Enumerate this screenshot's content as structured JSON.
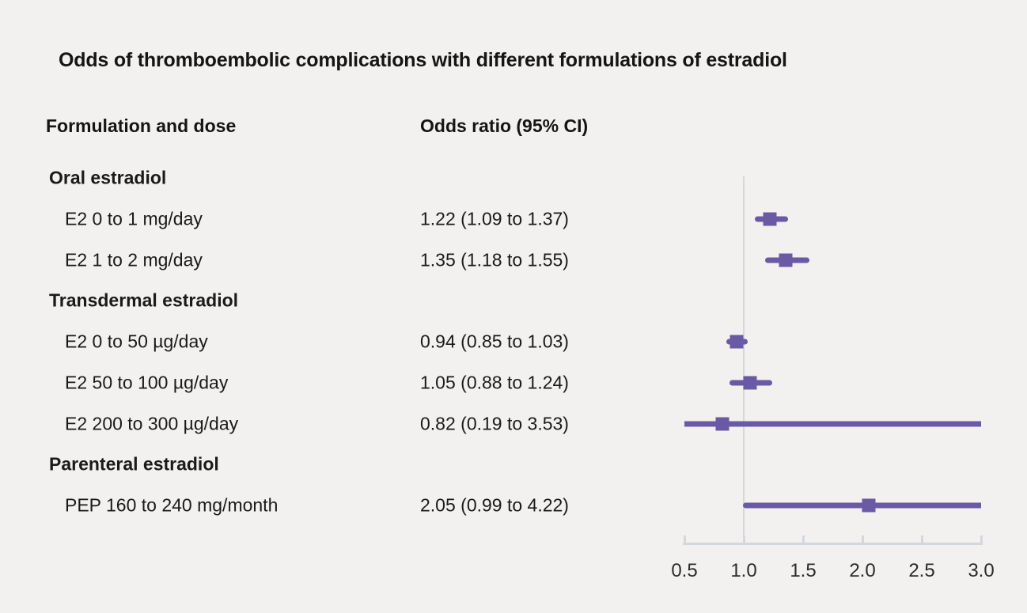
{
  "title": "Odds of thromboembolic complications with different formulations of estradiol",
  "columns": {
    "formulation": "Formulation and dose",
    "odds_ratio": "Odds ratio (95% CI)"
  },
  "colors": {
    "background": "#f2f1ef",
    "text": "#1a1a1a",
    "marker_purple": "#6a59a4",
    "axis_gray": "#d3d7de"
  },
  "chart_data": {
    "type": "forest",
    "title": "Odds of thromboembolic complications with different formulations of estradiol",
    "xlabel": "",
    "ylabel": "",
    "xlim": [
      0.5,
      3.0
    ],
    "x_ticks": [
      "0.5",
      "1.0",
      "1.5",
      "2.0",
      "2.5",
      "3.0"
    ],
    "x_tick_values": [
      0.5,
      1.0,
      1.5,
      2.0,
      2.5,
      3.0
    ],
    "reference_line": 1.0,
    "grid": false,
    "legend": false,
    "rows": [
      {
        "kind": "group",
        "label": "Oral estradiol"
      },
      {
        "kind": "item",
        "label": "E2 0 to 1 mg/day",
        "value_text": "1.22 (1.09 to 1.37)",
        "est": 1.22,
        "lo": 1.09,
        "hi": 1.37
      },
      {
        "kind": "item",
        "label": "E2 1 to 2 mg/day",
        "value_text": "1.35 (1.18 to 1.55)",
        "est": 1.35,
        "lo": 1.18,
        "hi": 1.55
      },
      {
        "kind": "group",
        "label": "Transdermal estradiol"
      },
      {
        "kind": "item",
        "label": "E2 0 to 50 µg/day",
        "value_text": "0.94 (0.85 to 1.03)",
        "est": 0.94,
        "lo": 0.85,
        "hi": 1.03
      },
      {
        "kind": "item",
        "label": "E2 50 to 100 µg/day",
        "value_text": "1.05 (0.88 to 1.24)",
        "est": 1.05,
        "lo": 0.88,
        "hi": 1.24
      },
      {
        "kind": "item",
        "label": "E2 200 to 300 µg/day",
        "value_text": "0.82 (0.19 to 3.53)",
        "est": 0.82,
        "lo": 0.19,
        "hi": 3.53
      },
      {
        "kind": "group",
        "label": "Parenteral estradiol"
      },
      {
        "kind": "item",
        "label": "PEP 160 to 240 mg/month",
        "value_text": "2.05 (0.99 to 4.22)",
        "est": 2.05,
        "lo": 0.99,
        "hi": 4.22
      }
    ]
  }
}
